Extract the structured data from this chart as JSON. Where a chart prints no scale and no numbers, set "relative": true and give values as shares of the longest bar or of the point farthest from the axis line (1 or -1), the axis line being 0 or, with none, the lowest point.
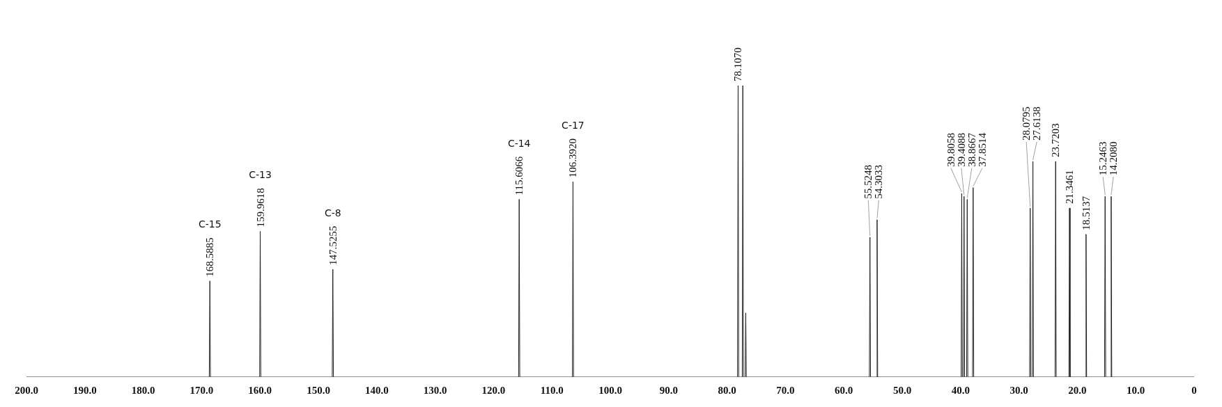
{
  "chart_data": {
    "type": "line",
    "relative": true,
    "xlim": [
      200,
      0
    ],
    "xticks": [
      {
        "value": 200,
        "label": "200.0"
      },
      {
        "value": 190,
        "label": "190.0"
      },
      {
        "value": 180,
        "label": "180.0"
      },
      {
        "value": 170,
        "label": "170.0"
      },
      {
        "value": 160,
        "label": "160.0"
      },
      {
        "value": 150,
        "label": "150.0"
      },
      {
        "value": 140,
        "label": "140.0"
      },
      {
        "value": 130,
        "label": "130.0"
      },
      {
        "value": 120,
        "label": "120.0"
      },
      {
        "value": 110,
        "label": "110.0"
      },
      {
        "value": 100,
        "label": "100.0"
      },
      {
        "value": 90,
        "label": "90.0"
      },
      {
        "value": 80,
        "label": "80.0"
      },
      {
        "value": 70,
        "label": "70.0"
      },
      {
        "value": 60,
        "label": "60.0"
      },
      {
        "value": 50,
        "label": "50.0"
      },
      {
        "value": 40,
        "label": "40.0"
      },
      {
        "value": 30,
        "label": "30.0"
      },
      {
        "value": 20,
        "label": "20.0"
      },
      {
        "value": 10,
        "label": "10.0"
      },
      0
    ],
    "series": [
      {
        "color": "#222222",
        "x": [
          200,
          168.6885,
          168.5885,
          168.4885,
          160.0618,
          159.9618,
          159.8618,
          147.6255,
          147.5255,
          147.4255,
          115.7066,
          115.6066,
          115.5066,
          106.492,
          106.392,
          106.292,
          78.207,
          78.107,
          78.007,
          77.4,
          77.3,
          77.2,
          76.9,
          76.8,
          76.7,
          55.6248,
          55.5248,
          55.4248,
          54.4033,
          54.3033,
          54.2033,
          39.9058,
          39.8058,
          39.7058,
          39.5088,
          39.4088,
          39.3088,
          38.9667,
          38.8667,
          38.7667,
          37.9514,
          37.8514,
          37.7514,
          28.1795,
          28.0795,
          27.9795,
          27.7138,
          27.6138,
          27.5138,
          23.8203,
          23.7203,
          23.6203,
          21.4461,
          21.3461,
          21.2461,
          18.6137,
          18.5137,
          18.4137,
          15.3463,
          15.2463,
          15.1463,
          14.308,
          14.208,
          14.108,
          0
        ],
        "values": [
          0,
          0,
          0.33,
          0,
          0,
          0.5,
          0,
          0,
          0.37,
          0,
          0,
          0.61,
          0,
          0,
          0.67,
          0,
          0,
          1,
          0,
          0,
          1,
          0,
          0,
          0.22,
          0,
          0,
          0.48,
          0,
          0,
          0.54,
          0,
          0,
          0.63,
          0,
          0,
          0.62,
          0,
          0,
          0.61,
          0,
          0,
          0.65,
          0,
          0,
          0.58,
          0,
          0,
          0.74,
          0,
          0,
          0.74,
          0,
          0,
          0.58,
          0,
          0,
          0.49,
          0,
          0,
          0.62,
          0,
          0,
          0.62,
          0,
          0
        ]
      }
    ],
    "annotations": [
      {
        "text": "168.5885",
        "x": 168.5885,
        "y": 0.33
      },
      {
        "text": "159.9618",
        "x": 159.9618,
        "y": 0.5
      },
      {
        "text": "147.5255",
        "x": 147.5255,
        "y": 0.37
      },
      {
        "text": "115.6066",
        "x": 115.6066,
        "y": 0.61
      },
      {
        "text": "106.3920",
        "x": 106.392,
        "y": 0.67
      },
      {
        "text": "78.1070",
        "x": 78.107,
        "y": 1
      },
      {
        "text": "55.5248",
        "x": 55.5248,
        "y": 0.48
      },
      {
        "text": "54.3033",
        "x": 54.3033,
        "y": 0.54
      },
      {
        "text": "39.8058",
        "x": 39.8058,
        "y": 0.63
      },
      {
        "text": "39.4088",
        "x": 39.4088,
        "y": 0.62
      },
      {
        "text": "38.8667",
        "x": 38.8667,
        "y": 0.61
      },
      {
        "text": "37.8514",
        "x": 37.8514,
        "y": 0.65
      },
      {
        "text": "28.0795",
        "x": 28.0795,
        "y": 0.58
      },
      {
        "text": "27.6138",
        "x": 27.6138,
        "y": 0.74
      },
      {
        "text": "23.7203",
        "x": 23.7203,
        "y": 0.74
      },
      {
        "text": "21.3461",
        "x": 21.3461,
        "y": 0.58
      },
      {
        "text": "18.5137",
        "x": 18.5137,
        "y": 0.49
      },
      {
        "text": "15.2463",
        "x": 15.2463,
        "y": 0.62
      },
      {
        "text": "14.2080",
        "x": 14.208,
        "y": 0.62
      },
      "C-15",
      "C-13",
      "C-8",
      "C-14",
      "C-17"
    ]
  }
}
